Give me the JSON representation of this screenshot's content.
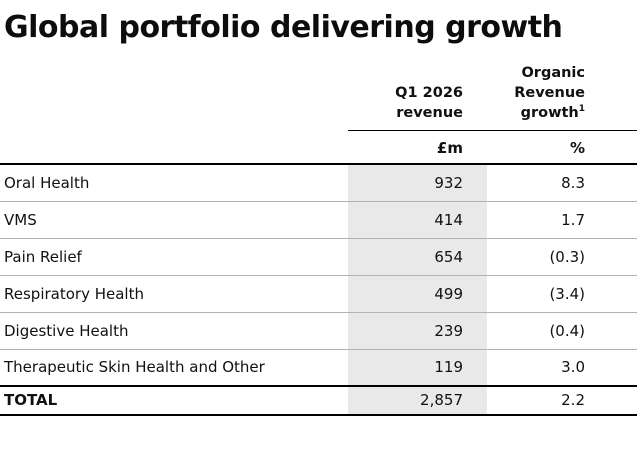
{
  "title": "Global portfolio delivering growth",
  "table": {
    "col1_header": {
      "line1": "Q1 2026",
      "line2": "revenue"
    },
    "col2_header": {
      "line1": "Organic",
      "line2": "Revenue",
      "line3": "growth",
      "sup": "1"
    },
    "units": {
      "revenue": "£m",
      "growth": "%"
    },
    "rows": [
      {
        "label": "Oral Health",
        "revenue": "932",
        "growth": "8.3"
      },
      {
        "label": "VMS",
        "revenue": "414",
        "growth": "1.7"
      },
      {
        "label": "Pain Relief",
        "revenue": "654",
        "growth": "(0.3)"
      },
      {
        "label": "Respiratory Health",
        "revenue": "499",
        "growth": "(3.4)"
      },
      {
        "label": "Digestive Health",
        "revenue": "239",
        "growth": "(0.4)"
      },
      {
        "label": "Therapeutic Skin Health and Other",
        "revenue": "119",
        "growth": "3.0"
      }
    ],
    "total": {
      "label": "TOTAL",
      "revenue": "2,857",
      "growth": "2.2"
    }
  },
  "colors": {
    "revenue_column_bg": "#e9e9e9",
    "rule_black": "#000000",
    "rule_gray": "#b3b3b3",
    "text": "#111111"
  }
}
